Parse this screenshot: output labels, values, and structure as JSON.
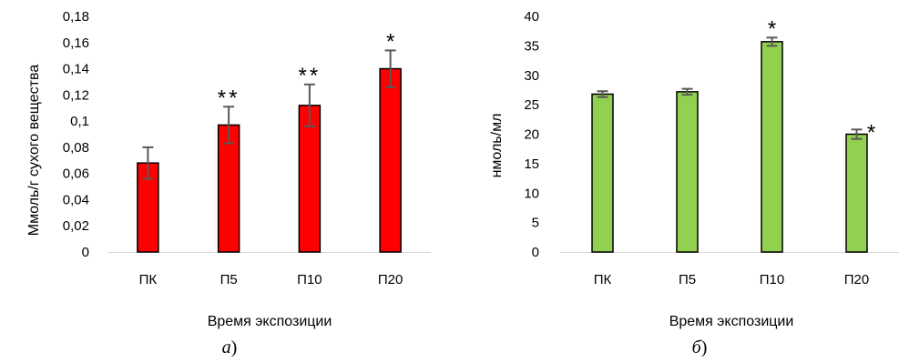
{
  "chart_data": [
    {
      "type": "bar",
      "categories": [
        "ПК",
        "П5",
        "П10",
        "П20"
      ],
      "values": [
        0.068,
        0.097,
        0.112,
        0.14
      ],
      "errors": [
        0.012,
        0.014,
        0.016,
        0.014
      ],
      "significance": [
        "",
        "**",
        "**",
        "*"
      ],
      "bar_color": "#ff0000",
      "xlabel": "Время экспозиции",
      "ylabel": "Ммоль/г сухого вещества",
      "ylim": [
        0,
        0.18
      ],
      "yticks": [
        "0",
        "0,02",
        "0,04",
        "0,06",
        "0,08",
        "0,1",
        "0,12",
        "0,14",
        "0,16",
        "0,18"
      ],
      "caption": "а",
      "grid": false
    },
    {
      "type": "bar",
      "categories": [
        "ПК",
        "П5",
        "П10",
        "П20"
      ],
      "values": [
        26.8,
        27.2,
        35.7,
        20.0
      ],
      "errors": [
        0.5,
        0.5,
        0.7,
        0.8
      ],
      "significance": [
        "",
        "",
        "*",
        "*"
      ],
      "bar_color": "#92d050",
      "xlabel": "Время экспозиции",
      "ylabel": "нмоль/мл",
      "ylim": [
        0,
        40
      ],
      "yticks": [
        "0",
        "5",
        "10",
        "15",
        "20",
        "25",
        "30",
        "35",
        "40"
      ],
      "caption": "б",
      "grid": false
    }
  ]
}
